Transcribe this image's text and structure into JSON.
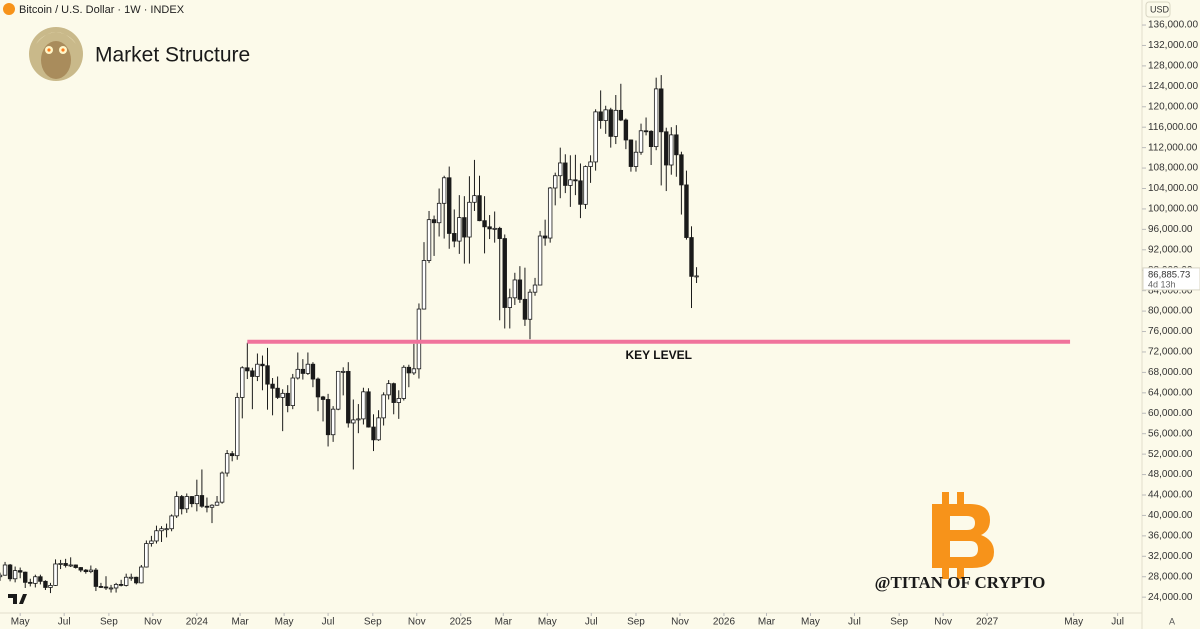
{
  "chart_data": {
    "type": "candlestick",
    "symbol": "Bitcoin / U.S. Dollar · 1W · INDEX",
    "title": "Market Structure",
    "currency": "USD",
    "auto_scale": "A",
    "watermark": "@TITAN OF CRYPTO",
    "last_price_label": "86,885.73",
    "countdown": "4d 13h",
    "up_color": "#ffffff",
    "down_color": "#1a1a1a",
    "edge_color": "#1a1a1a",
    "background": "#fcfaea",
    "x": [
      "2023-04-03",
      "2023-04-10",
      "2023-04-17",
      "2023-04-24",
      "2023-05-01",
      "2023-05-08",
      "2023-05-15",
      "2023-05-22",
      "2023-05-29",
      "2023-06-05",
      "2023-06-12",
      "2023-06-19",
      "2023-06-26",
      "2023-07-03",
      "2023-07-10",
      "2023-07-17",
      "2023-07-24",
      "2023-07-31",
      "2023-08-07",
      "2023-08-14",
      "2023-08-21",
      "2023-08-28",
      "2023-09-04",
      "2023-09-11",
      "2023-09-18",
      "2023-09-25",
      "2023-10-02",
      "2023-10-09",
      "2023-10-16",
      "2023-10-23",
      "2023-10-30",
      "2023-11-06",
      "2023-11-13",
      "2023-11-20",
      "2023-11-27",
      "2023-12-04",
      "2023-12-11",
      "2023-12-18",
      "2023-12-25",
      "2024-01-01",
      "2024-01-08",
      "2024-01-15",
      "2024-01-22",
      "2024-01-29",
      "2024-02-05",
      "2024-02-12",
      "2024-02-19",
      "2024-02-26",
      "2024-03-04",
      "2024-03-11",
      "2024-03-18",
      "2024-03-25",
      "2024-04-01",
      "2024-04-08",
      "2024-04-15",
      "2024-04-22",
      "2024-04-29",
      "2024-05-06",
      "2024-05-13",
      "2024-05-20",
      "2024-05-27",
      "2024-06-03",
      "2024-06-10",
      "2024-06-17",
      "2024-06-24",
      "2024-07-01",
      "2024-07-08",
      "2024-07-15",
      "2024-07-22",
      "2024-07-29",
      "2024-08-05",
      "2024-08-12",
      "2024-08-19",
      "2024-08-26",
      "2024-09-02",
      "2024-09-09",
      "2024-09-16",
      "2024-09-23",
      "2024-09-30",
      "2024-10-07",
      "2024-10-14",
      "2024-10-21",
      "2024-10-28",
      "2024-11-04",
      "2024-11-11",
      "2024-11-18",
      "2024-11-25",
      "2024-12-02",
      "2024-12-09",
      "2024-12-16",
      "2024-12-23",
      "2024-12-30",
      "2025-01-06",
      "2025-01-13",
      "2025-01-20",
      "2025-01-27",
      "2025-02-03",
      "2025-02-10",
      "2025-02-17",
      "2025-02-24",
      "2025-03-03",
      "2025-03-10",
      "2025-03-17",
      "2025-03-24",
      "2025-03-31",
      "2025-04-07",
      "2025-04-14",
      "2025-04-21",
      "2025-04-28",
      "2025-05-05",
      "2025-05-12",
      "2025-05-19",
      "2025-05-26",
      "2025-06-02",
      "2025-06-09",
      "2025-06-16",
      "2025-06-23",
      "2025-06-30",
      "2025-07-07",
      "2025-07-14",
      "2025-07-21",
      "2025-07-28",
      "2025-08-04",
      "2025-08-11",
      "2025-08-18",
      "2025-08-25",
      "2025-09-01",
      "2025-09-08",
      "2025-09-15",
      "2025-09-22",
      "2025-09-29",
      "2025-10-06",
      "2025-10-13",
      "2025-10-20",
      "2025-10-27",
      "2025-11-03",
      "2025-11-10",
      "2025-11-17",
      "2025-11-24"
    ],
    "ohlc": [
      [
        28000,
        28800,
        27200,
        28300
      ],
      [
        28300,
        30900,
        28200,
        30300
      ],
      [
        30300,
        30500,
        27100,
        27600
      ],
      [
        27600,
        30000,
        26900,
        29200
      ],
      [
        29200,
        29800,
        27700,
        28900
      ],
      [
        28900,
        29000,
        25800,
        26900
      ],
      [
        26900,
        27600,
        26100,
        26700
      ],
      [
        26700,
        28400,
        25900,
        28000
      ],
      [
        28000,
        28400,
        26500,
        27100
      ],
      [
        27100,
        27300,
        25400,
        25900
      ],
      [
        25900,
        26800,
        24800,
        26300
      ],
      [
        26300,
        31400,
        26200,
        30500
      ],
      [
        30500,
        31300,
        29500,
        30600
      ],
      [
        30600,
        31500,
        29800,
        30200
      ],
      [
        30200,
        31800,
        29900,
        30300
      ],
      [
        30300,
        30400,
        29600,
        29800
      ],
      [
        29800,
        29900,
        28900,
        29300
      ],
      [
        29300,
        29500,
        28600,
        29000
      ],
      [
        29000,
        30200,
        28700,
        29300
      ],
      [
        29300,
        29700,
        25200,
        26100
      ],
      [
        26100,
        26800,
        25800,
        26000
      ],
      [
        26000,
        28100,
        25400,
        25800
      ],
      [
        25800,
        26400,
        24900,
        25800
      ],
      [
        25800,
        26800,
        24900,
        26500
      ],
      [
        26500,
        27400,
        26100,
        26300
      ],
      [
        26300,
        28600,
        26100,
        27900
      ],
      [
        27900,
        28600,
        27200,
        27900
      ],
      [
        27900,
        28000,
        26500,
        26800
      ],
      [
        26800,
        30300,
        26700,
        29900
      ],
      [
        29900,
        35100,
        29800,
        34500
      ],
      [
        34500,
        36000,
        33900,
        35000
      ],
      [
        35000,
        38000,
        34500,
        37000
      ],
      [
        37000,
        37900,
        34800,
        37400
      ],
      [
        37400,
        38400,
        35700,
        37400
      ],
      [
        37400,
        40200,
        36900,
        39900
      ],
      [
        39900,
        44700,
        39500,
        43700
      ],
      [
        43700,
        44000,
        40200,
        41300
      ],
      [
        41300,
        44300,
        40500,
        43700
      ],
      [
        43700,
        43800,
        41600,
        42300
      ],
      [
        42300,
        47000,
        40800,
        43900
      ],
      [
        43900,
        49000,
        41500,
        41800
      ],
      [
        41800,
        43500,
        40600,
        41600
      ],
      [
        41600,
        42200,
        38500,
        42000
      ],
      [
        42000,
        43800,
        41900,
        42600
      ],
      [
        42600,
        48600,
        42300,
        48300
      ],
      [
        48300,
        52800,
        47600,
        52100
      ],
      [
        52100,
        52600,
        50600,
        51700
      ],
      [
        51700,
        64000,
        50900,
        63100
      ],
      [
        63100,
        69200,
        59000,
        68900
      ],
      [
        68900,
        73800,
        66700,
        68300
      ],
      [
        68300,
        68900,
        60800,
        67200
      ],
      [
        67200,
        71700,
        66300,
        69600
      ],
      [
        69600,
        71300,
        64500,
        69300
      ],
      [
        69300,
        72800,
        60700,
        65700
      ],
      [
        65700,
        66900,
        59600,
        64900
      ],
      [
        64900,
        67200,
        62800,
        63100
      ],
      [
        63100,
        64700,
        56500,
        63900
      ],
      [
        63900,
        65500,
        60200,
        61500
      ],
      [
        61500,
        67700,
        60800,
        66900
      ],
      [
        66900,
        71900,
        66600,
        68600
      ],
      [
        68600,
        70600,
        66600,
        67800
      ],
      [
        67800,
        71900,
        67500,
        69600
      ],
      [
        69600,
        70000,
        65100,
        66700
      ],
      [
        66700,
        67000,
        60400,
        63200
      ],
      [
        63200,
        63400,
        58400,
        62700
      ],
      [
        62700,
        63800,
        53500,
        55800
      ],
      [
        55800,
        61400,
        54400,
        60800
      ],
      [
        60800,
        68300,
        60600,
        68200
      ],
      [
        68200,
        69000,
        63500,
        68200
      ],
      [
        68200,
        70000,
        57200,
        58100
      ],
      [
        58100,
        62700,
        49000,
        58700
      ],
      [
        58700,
        61800,
        56100,
        58900
      ],
      [
        58900,
        65000,
        57800,
        64200
      ],
      [
        64200,
        64900,
        57200,
        57300
      ],
      [
        57300,
        59800,
        52600,
        54800
      ],
      [
        54800,
        60600,
        54600,
        59100
      ],
      [
        59100,
        64100,
        57600,
        63600
      ],
      [
        63600,
        66500,
        62700,
        65800
      ],
      [
        65800,
        66000,
        59800,
        62100
      ],
      [
        62100,
        64500,
        58900,
        62900
      ],
      [
        62900,
        69400,
        62500,
        69000
      ],
      [
        69000,
        69500,
        65100,
        67900
      ],
      [
        67900,
        73600,
        67500,
        68700
      ],
      [
        68700,
        81500,
        66800,
        80400
      ],
      [
        80400,
        93500,
        80300,
        89900
      ],
      [
        89900,
        99600,
        89400,
        97900
      ],
      [
        97900,
        98700,
        90800,
        97300
      ],
      [
        97300,
        104000,
        94600,
        101100
      ],
      [
        101100,
        106500,
        94200,
        106100
      ],
      [
        106100,
        108300,
        92200,
        95200
      ],
      [
        95200,
        99900,
        92500,
        93700
      ],
      [
        93700,
        102700,
        91200,
        98300
      ],
      [
        98300,
        102500,
        89300,
        94500
      ],
      [
        94500,
        106400,
        89300,
        101300
      ],
      [
        101300,
        109600,
        99600,
        102600
      ],
      [
        102600,
        106500,
        97600,
        97700
      ],
      [
        97700,
        102500,
        91300,
        96500
      ],
      [
        96500,
        98800,
        94100,
        96100
      ],
      [
        96100,
        99500,
        93400,
        96200
      ],
      [
        96200,
        96500,
        78200,
        94200
      ],
      [
        94200,
        95000,
        76600,
        80700
      ],
      [
        80700,
        84400,
        76600,
        82600
      ],
      [
        82600,
        87500,
        81200,
        86100
      ],
      [
        86100,
        88800,
        81600,
        82300
      ],
      [
        82300,
        88500,
        77100,
        78400
      ],
      [
        78400,
        84300,
        74500,
        83700
      ],
      [
        83700,
        86500,
        83000,
        85100
      ],
      [
        85100,
        95700,
        85100,
        94700
      ],
      [
        94700,
        97900,
        92800,
        94300
      ],
      [
        94300,
        104300,
        93400,
        104100
      ],
      [
        104100,
        107100,
        100700,
        106500
      ],
      [
        106500,
        112000,
        102100,
        109000
      ],
      [
        109000,
        110700,
        103100,
        104600
      ],
      [
        104600,
        110500,
        100400,
        105700
      ],
      [
        105700,
        110600,
        102700,
        105500
      ],
      [
        105500,
        108900,
        98200,
        100900
      ],
      [
        100900,
        108500,
        100000,
        108300
      ],
      [
        108300,
        110500,
        105100,
        109200
      ],
      [
        109200,
        119500,
        107500,
        119000
      ],
      [
        119000,
        123200,
        115700,
        117300
      ],
      [
        117300,
        120200,
        114700,
        119400
      ],
      [
        119400,
        119800,
        112000,
        114200
      ],
      [
        114200,
        122300,
        112700,
        119300
      ],
      [
        119300,
        124500,
        117200,
        117400
      ],
      [
        117400,
        117700,
        111700,
        113500
      ],
      [
        113500,
        113600,
        107300,
        108300
      ],
      [
        108300,
        113400,
        107300,
        111100
      ],
      [
        111100,
        116700,
        110600,
        115300
      ],
      [
        115300,
        117900,
        114400,
        115200
      ],
      [
        115200,
        115400,
        108600,
        112200
      ],
      [
        112200,
        125700,
        111500,
        123500
      ],
      [
        123500,
        126200,
        104600,
        115100
      ],
      [
        115100,
        115900,
        103500,
        108600
      ],
      [
        108600,
        116000,
        106700,
        114500
      ],
      [
        114500,
        116400,
        106300,
        110600
      ],
      [
        110600,
        111200,
        98900,
        104700
      ],
      [
        104700,
        107500,
        94000,
        94400
      ],
      [
        94400,
        96600,
        80600,
        86800
      ],
      [
        86800,
        88600,
        85500,
        86885.73
      ]
    ],
    "xlim": [
      "2023-04-03",
      "2027-08-01"
    ],
    "ylim": [
      20900,
      140900
    ],
    "yticks": [
      {
        "value": 24000,
        "label": "24,000.00"
      },
      {
        "value": 28000,
        "label": "28,000.00"
      },
      {
        "value": 32000,
        "label": "32,000.00"
      },
      {
        "value": 36000,
        "label": "36,000.00"
      },
      {
        "value": 40000,
        "label": "40,000.00"
      },
      {
        "value": 44000,
        "label": "44,000.00"
      },
      {
        "value": 48000,
        "label": "48,000.00"
      },
      {
        "value": 52000,
        "label": "52,000.00"
      },
      {
        "value": 56000,
        "label": "56,000.00"
      },
      {
        "value": 60000,
        "label": "60,000.00"
      },
      {
        "value": 64000,
        "label": "64,000.00"
      },
      {
        "value": 68000,
        "label": "68,000.00"
      },
      {
        "value": 72000,
        "label": "72,000.00"
      },
      {
        "value": 76000,
        "label": "76,000.00"
      },
      {
        "value": 80000,
        "label": "80,000.00"
      },
      {
        "value": 84000,
        "label": "84,000.00"
      },
      {
        "value": 88000,
        "label": "88,000.00"
      },
      {
        "value": 92000,
        "label": "92,000.00"
      },
      {
        "value": 96000,
        "label": "96,000.00"
      },
      {
        "value": 100000,
        "label": "100,000.00"
      },
      {
        "value": 104000,
        "label": "104,000.00"
      },
      {
        "value": 108000,
        "label": "108,000.00"
      },
      {
        "value": 112000,
        "label": "112,000.00"
      },
      {
        "value": 116000,
        "label": "116,000.00"
      },
      {
        "value": 120000,
        "label": "120,000.00"
      },
      {
        "value": 124000,
        "label": "124,000.00"
      },
      {
        "value": 128000,
        "label": "128,000.00"
      },
      {
        "value": 132000,
        "label": "132,000.00"
      },
      {
        "value": 136000,
        "label": "136,000.00"
      }
    ],
    "xticks": [
      {
        "value": "2023-05-01",
        "label": "May"
      },
      {
        "value": "2023-07-01",
        "label": "Jul"
      },
      {
        "value": "2023-09-01",
        "label": "Sep"
      },
      {
        "value": "2023-11-01",
        "label": "Nov"
      },
      {
        "value": "2024-01-01",
        "label": "2024"
      },
      {
        "value": "2024-03-01",
        "label": "Mar"
      },
      {
        "value": "2024-05-01",
        "label": "May"
      },
      {
        "value": "2024-07-01",
        "label": "Jul"
      },
      {
        "value": "2024-09-01",
        "label": "Sep"
      },
      {
        "value": "2024-11-01",
        "label": "Nov"
      },
      {
        "value": "2025-01-01",
        "label": "2025"
      },
      {
        "value": "2025-03-01",
        "label": "Mar"
      },
      {
        "value": "2025-05-01",
        "label": "May"
      },
      {
        "value": "2025-07-01",
        "label": "Jul"
      },
      {
        "value": "2025-09-01",
        "label": "Sep"
      },
      {
        "value": "2025-11-01",
        "label": "Nov"
      },
      {
        "value": "2026-01-01",
        "label": "2026"
      },
      {
        "value": "2026-03-01",
        "label": "Mar"
      },
      {
        "value": "2026-05-01",
        "label": "May"
      },
      {
        "value": "2026-07-01",
        "label": "Jul"
      },
      {
        "value": "2026-09-01",
        "label": "Sep"
      },
      {
        "value": "2026-11-01",
        "label": "Nov"
      },
      {
        "value": "2027-01-01",
        "label": "2027"
      },
      {
        "value": "2027-05-01",
        "label": "May"
      },
      {
        "value": "2027-07-01",
        "label": "Jul"
      }
    ],
    "annotations": [
      {
        "text": "KEY LEVEL",
        "value": 74000,
        "x0": "2024-03-11",
        "x1": "2027-04-26",
        "color": "#f0739c"
      }
    ]
  }
}
